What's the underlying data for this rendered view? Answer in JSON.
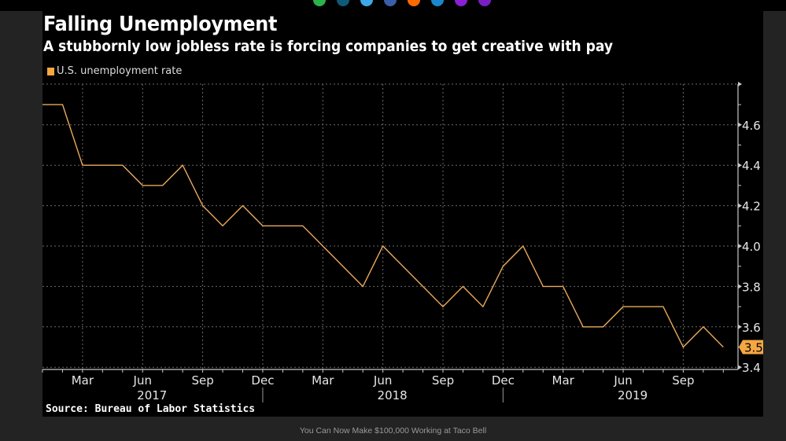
{
  "top_dots": [
    "#2bb34a",
    "#0f5a78",
    "#3fa7e8",
    "#3a5ea8",
    "#ff6a00",
    "#1b86c9",
    "#8a1fd6",
    "#7a1fc4"
  ],
  "chart_data": {
    "type": "line",
    "title": "Falling Unemployment",
    "subtitle": "A stubbornly low jobless rate is forcing companies to get creative with pay",
    "legend": [
      {
        "name": "U.S. unemployment rate",
        "color": "#f5a742"
      }
    ],
    "legend_position": "top-left",
    "series": [
      {
        "name": "U.S. unemployment rate",
        "color": "#e8a95c",
        "x": [
          "2017-01",
          "2017-02",
          "2017-03",
          "2017-04",
          "2017-05",
          "2017-06",
          "2017-07",
          "2017-08",
          "2017-09",
          "2017-10",
          "2017-11",
          "2017-12",
          "2018-01",
          "2018-02",
          "2018-03",
          "2018-04",
          "2018-05",
          "2018-06",
          "2018-07",
          "2018-08",
          "2018-09",
          "2018-10",
          "2018-11",
          "2018-12",
          "2019-01",
          "2019-02",
          "2019-03",
          "2019-04",
          "2019-05",
          "2019-06",
          "2019-07",
          "2019-08",
          "2019-09",
          "2019-10",
          "2019-11"
        ],
        "values": [
          4.7,
          4.7,
          4.4,
          4.4,
          4.4,
          4.3,
          4.3,
          4.4,
          4.2,
          4.1,
          4.2,
          4.1,
          4.1,
          4.1,
          4.0,
          3.9,
          3.8,
          4.0,
          3.9,
          3.8,
          3.7,
          3.8,
          3.7,
          3.9,
          4.0,
          3.8,
          3.8,
          3.6,
          3.6,
          3.7,
          3.7,
          3.7,
          3.5,
          3.6,
          3.5
        ]
      }
    ],
    "last_value_label": "3.5",
    "yaxis": {
      "position": "right",
      "ylim": [
        3.38,
        4.8
      ],
      "ticks": [
        3.4,
        3.6,
        3.8,
        4.0,
        4.2,
        4.4,
        4.6
      ],
      "tick_labels": [
        "3.4",
        "3.6",
        "3.8",
        "4.0",
        "4.2",
        "4.4",
        "4.6"
      ]
    },
    "xaxis": {
      "month_ticks": [
        {
          "label": "Mar",
          "month": "2017-03"
        },
        {
          "label": "Jun",
          "month": "2017-06"
        },
        {
          "label": "Sep",
          "month": "2017-09"
        },
        {
          "label": "Dec",
          "month": "2017-12"
        },
        {
          "label": "Mar",
          "month": "2018-03"
        },
        {
          "label": "Jun",
          "month": "2018-06"
        },
        {
          "label": "Sep",
          "month": "2018-09"
        },
        {
          "label": "Dec",
          "month": "2018-12"
        },
        {
          "label": "Mar",
          "month": "2019-03"
        },
        {
          "label": "Jun",
          "month": "2019-06"
        },
        {
          "label": "Sep",
          "month": "2019-09"
        }
      ],
      "year_labels": [
        {
          "label": "2017",
          "month": "2017-06"
        },
        {
          "label": "2018",
          "month": "2018-06"
        },
        {
          "label": "2019",
          "month": "2019-06"
        }
      ],
      "year_separators": [
        "2017-12",
        "2018-12"
      ]
    },
    "grid": true,
    "xlabel": "",
    "ylabel": ""
  },
  "source": "Source: Bureau of Labor Statistics",
  "caption": "You Can Now Make $100,000 Working at Taco Bell"
}
